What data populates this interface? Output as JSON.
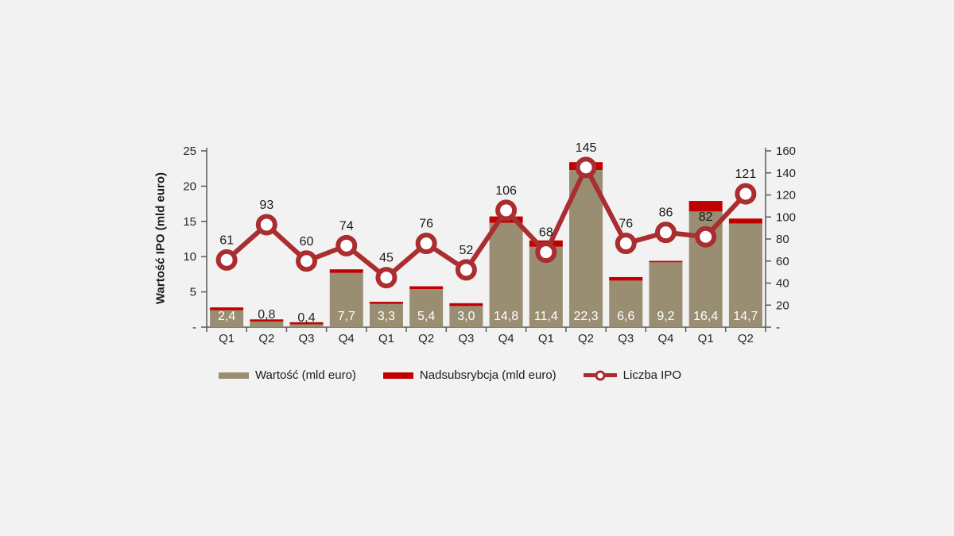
{
  "background": "#f2f2f2",
  "chart_data": {
    "type": "combo-bar-line",
    "categories": [
      "Q1",
      "Q2",
      "Q3",
      "Q4",
      "Q1",
      "Q2",
      "Q3",
      "Q4",
      "Q1",
      "Q2",
      "Q3",
      "Q4",
      "Q1",
      "Q2"
    ],
    "series": [
      {
        "name": "Wartość (mld euro)",
        "type": "bar",
        "axis": "left",
        "color": "#998e72",
        "values": [
          2.4,
          0.8,
          0.4,
          7.7,
          3.3,
          5.4,
          3.0,
          14.8,
          11.4,
          22.3,
          6.6,
          9.2,
          16.4,
          14.7
        ],
        "labels": [
          "2,4",
          "0,8",
          "0,4",
          "7,7",
          "3,3",
          "5,4",
          "3,0",
          "14,8",
          "11,4",
          "22,3",
          "6,6",
          "9,2",
          "16,4",
          "14,7"
        ]
      },
      {
        "name": "Nadsubsrybcja (mld euro)",
        "type": "bar-stacked-cap",
        "axis": "left",
        "color": "#c00000",
        "values": [
          0.4,
          0.3,
          0.3,
          0.5,
          0.3,
          0.4,
          0.4,
          0.9,
          0.9,
          1.1,
          0.5,
          0.2,
          1.5,
          0.7
        ]
      },
      {
        "name": "Liczba IPO",
        "type": "line",
        "axis": "right",
        "color": "#aa2d30",
        "marker": "circle-open",
        "values": [
          61,
          93,
          60,
          74,
          45,
          76,
          52,
          106,
          68,
          145,
          76,
          86,
          82,
          121
        ]
      }
    ],
    "left_axis": {
      "title": "Wartość IPO (mld euro)",
      "min": 0,
      "max": 25,
      "step": 5,
      "ticks": [
        "-",
        "5",
        "10",
        "15",
        "20",
        "25"
      ]
    },
    "right_axis": {
      "min": 0,
      "max": 160,
      "step": 20,
      "ticks": [
        "-",
        "20",
        "40",
        "60",
        "80",
        "100",
        "120",
        "140",
        "160"
      ]
    },
    "legend": {
      "position": "bottom",
      "items": [
        {
          "label": "Wartość (mld euro)",
          "swatch": "bar"
        },
        {
          "label": "Nadsubsrybcja (mld euro)",
          "swatch": "bar"
        },
        {
          "label": "Liczba IPO",
          "swatch": "line-marker"
        }
      ]
    },
    "grid": false
  }
}
